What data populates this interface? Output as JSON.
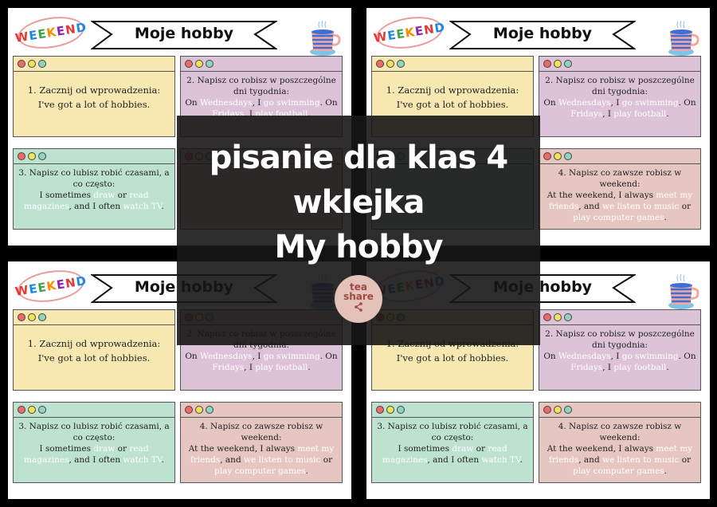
{
  "sheet": {
    "badge": "WEEKEND",
    "badge_letter_colors": [
      "#e53935",
      "#1e88e5",
      "#43a047",
      "#fb8c00",
      "#8e24aa",
      "#e53935",
      "#1e88e5"
    ],
    "title": "Moje hobby",
    "dot_colors": [
      "#f06868",
      "#f2e35c",
      "#8fd3c0"
    ],
    "cards": [
      {
        "prompt": "1. Zacznij od wprowadzenia:",
        "example": [
          {
            "t": "I've got a lot of hobbies."
          }
        ]
      },
      {
        "prompt": "2. Napisz co robisz w poszczególne dni tygodnia:",
        "example": [
          {
            "t": "On "
          },
          {
            "t": "Wednesdays",
            "hl": true
          },
          {
            "t": ", I "
          },
          {
            "t": "go swimming",
            "hl": true
          },
          {
            "t": ". On "
          },
          {
            "t": "Fridays",
            "hl": true
          },
          {
            "t": ", I "
          },
          {
            "t": "play football",
            "hl": true
          },
          {
            "t": "."
          }
        ]
      },
      {
        "prompt": "3. Napisz co lubisz robić czasami, a co często:",
        "example": [
          {
            "t": "I sometimes "
          },
          {
            "t": "draw",
            "hl": true
          },
          {
            "t": " or "
          },
          {
            "t": "read magazines",
            "hl": true
          },
          {
            "t": ", and I often "
          },
          {
            "t": "watch TV",
            "hl": true
          },
          {
            "t": "."
          }
        ]
      },
      {
        "prompt": "4. Napisz co zawsze robisz w weekend:",
        "example": [
          {
            "t": "At the weekend, I always "
          },
          {
            "t": "meet my friends",
            "hl": true
          },
          {
            "t": ", and "
          },
          {
            "t": "we listen to music",
            "hl": true
          },
          {
            "t": " or "
          },
          {
            "t": "play computer games",
            "hl": true
          },
          {
            "t": "."
          }
        ]
      }
    ]
  },
  "overlay": {
    "lines": [
      "pisanie dla klas 4",
      "wklejka",
      "My hobby"
    ],
    "logo": {
      "line1": "tea",
      "line2": "share",
      "icon": "share-icon"
    }
  }
}
